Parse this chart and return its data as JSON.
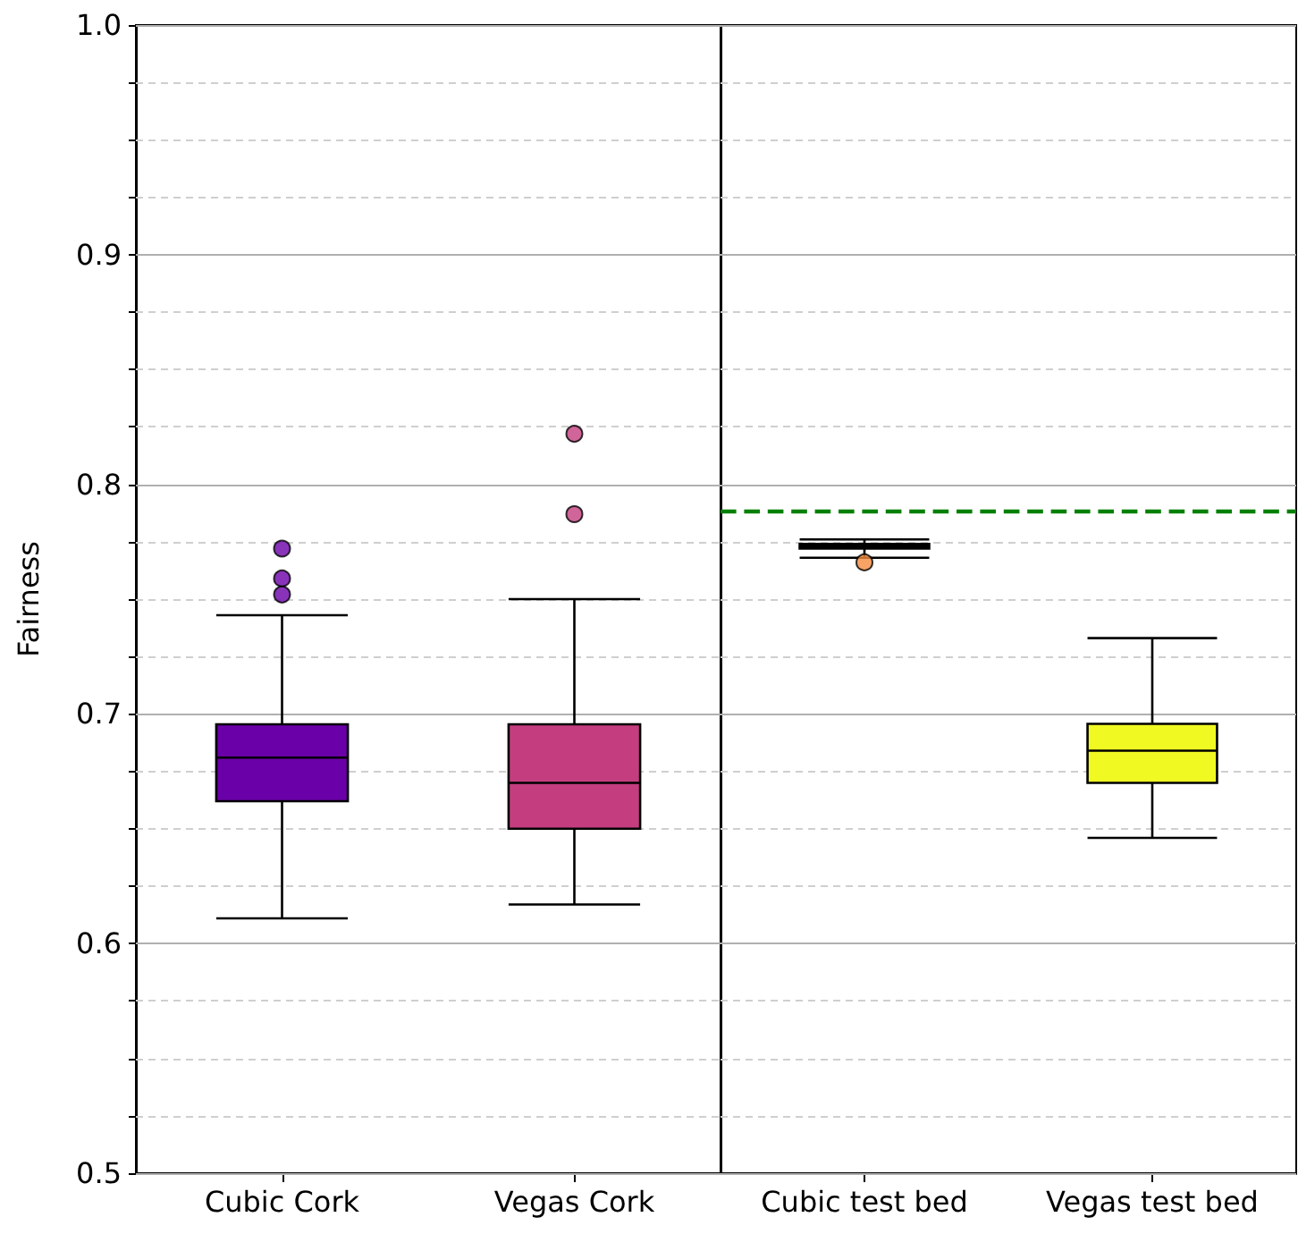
{
  "chart_data": [
    {
      "type": "box",
      "ylabel": "Fairness",
      "categories": [
        "Cubic Cork",
        "Vegas Cork"
      ],
      "colors": [
        "#6a00a8",
        "#c43e7f"
      ],
      "boxes": [
        {
          "low": 0.611,
          "q1": 0.662,
          "median": 0.681,
          "q3": 0.6955,
          "high": 0.743,
          "outliers": [
            0.772,
            0.759,
            0.752
          ]
        },
        {
          "low": 0.617,
          "q1": 0.65,
          "median": 0.67,
          "q3": 0.6955,
          "high": 0.75,
          "outliers": [
            0.822,
            0.787
          ]
        }
      ],
      "ylim": [
        0.5,
        1.0
      ],
      "yticks": [
        0.5,
        {
          "value": 0.525,
          "label": null
        },
        {
          "value": 0.55,
          "label": null
        },
        {
          "value": 0.575,
          "label": null
        },
        0.6,
        {
          "value": 0.625,
          "label": null
        },
        {
          "value": 0.65,
          "label": null
        },
        {
          "value": 0.675,
          "label": null
        },
        0.7,
        {
          "value": 0.725,
          "label": null
        },
        {
          "value": 0.75,
          "label": null
        },
        {
          "value": 0.775,
          "label": null
        },
        0.8,
        {
          "value": 0.825,
          "label": null
        },
        {
          "value": 0.85,
          "label": null
        },
        {
          "value": 0.875,
          "label": null
        },
        0.9,
        {
          "value": 0.925,
          "label": null
        },
        {
          "value": 0.95,
          "label": null
        },
        {
          "value": 0.975,
          "label": null
        },
        {
          "value": 1.0,
          "label": "1.0"
        }
      ],
      "grid": "y"
    },
    {
      "type": "box",
      "categories": [
        "Cubic test bed",
        "Vegas test bed"
      ],
      "colors": [
        "#f48c3e",
        "#f0f921"
      ],
      "boxes": [
        {
          "low": 0.768,
          "q1": 0.772,
          "median": 0.773,
          "q3": 0.774,
          "high": 0.776,
          "outliers": [
            0.766
          ]
        },
        {
          "low": 0.646,
          "q1": 0.67,
          "median": 0.684,
          "q3": 0.6957,
          "high": 0.733
        }
      ],
      "ylim": [
        0.5,
        1.0
      ],
      "yticks": [
        0.5,
        {
          "value": 0.525,
          "label": null
        },
        {
          "value": 0.55,
          "label": null
        },
        {
          "value": 0.575,
          "label": null
        },
        0.6,
        {
          "value": 0.625,
          "label": null
        },
        {
          "value": 0.65,
          "label": null
        },
        {
          "value": 0.675,
          "label": null
        },
        0.7,
        {
          "value": 0.725,
          "label": null
        },
        {
          "value": 0.75,
          "label": null
        },
        {
          "value": 0.775,
          "label": null
        },
        0.8,
        {
          "value": 0.825,
          "label": null
        },
        {
          "value": 0.85,
          "label": null
        },
        {
          "value": 0.875,
          "label": null
        },
        0.9,
        {
          "value": 0.925,
          "label": null
        },
        {
          "value": 0.95,
          "label": null
        },
        {
          "value": 0.975,
          "label": null
        },
        1.0
      ],
      "grid": "y",
      "tick_labels": "x",
      "ref_lines": [
        {
          "axis": "y",
          "value": 0.788,
          "color": "#008000",
          "line_style": "dashed"
        }
      ]
    }
  ]
}
